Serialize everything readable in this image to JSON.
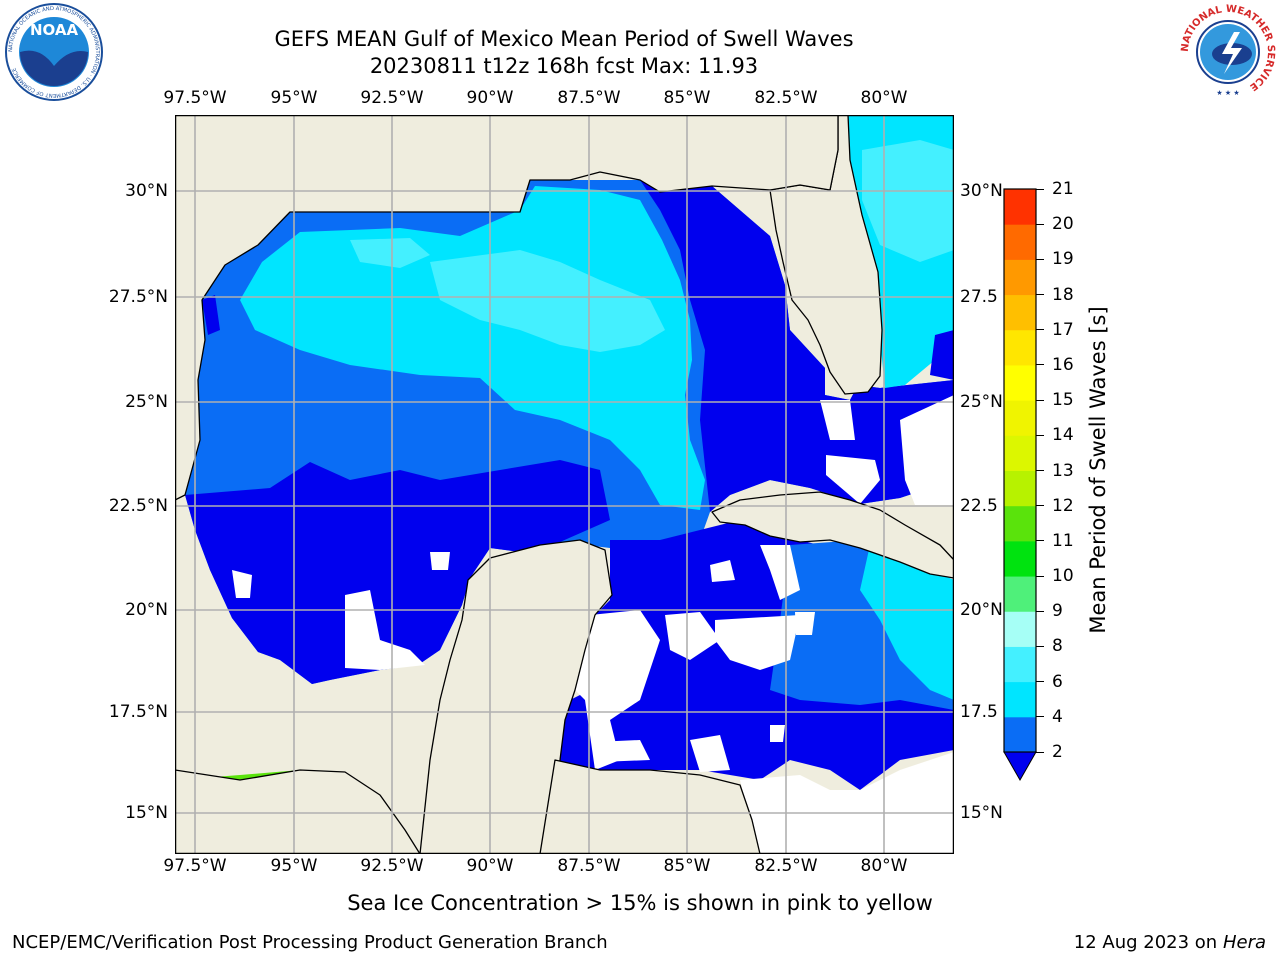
{
  "title": {
    "line1": "GEFS MEAN Gulf of Mexico Mean Period of Swell Waves",
    "line2": "20230811 t12z 168h fcst   Max: 11.93"
  },
  "map": {
    "lon_ticks": [
      "97.5°W",
      "95°W",
      "92.5°W",
      "90°W",
      "87.5°W",
      "85°W",
      "82.5°W",
      "80°W"
    ],
    "lat_ticks_left": [
      "30°N",
      "27.5°N",
      "25°N",
      "22.5°N",
      "20°N",
      "17.5°N",
      "15°N"
    ],
    "lat_ticks_right": [
      "30°N",
      "27.5",
      "25°N",
      "22.5",
      "20°N",
      "17.5",
      "15°N"
    ],
    "land_color": "#efedde",
    "grid_color": "#b0b0b0"
  },
  "colorbar": {
    "label": "Mean Period of Swell Waves [s]",
    "ticks": [
      "2",
      "4",
      "6",
      "8",
      "9",
      "10",
      "11",
      "12",
      "13",
      "14",
      "15",
      "16",
      "17",
      "18",
      "19",
      "20",
      "21"
    ],
    "colors": [
      "#0a6df5",
      "#00e5ff",
      "#44f0ff",
      "#a6fff6",
      "#4ff07a",
      "#00e30f",
      "#5ae30c",
      "#b7f200",
      "#dcf700",
      "#f0f400",
      "#ffff00",
      "#ffe600",
      "#ffbf00",
      "#ff9900",
      "#ff6a00",
      "#ff3200"
    ],
    "under_color": "#0000ee"
  },
  "footer": {
    "note": "Sea Ice Concentration > 15% is shown in pink to yellow",
    "credit": "NCEP/EMC/Verification Post Processing Product Generation Branch",
    "date": "12 Aug 2023 on",
    "machine": "Hera"
  },
  "logos": {
    "noaa_text": "NOAA",
    "noaa_ring": "NATIONAL OCEANIC AND ATMOSPHERIC ADMINISTRATION · U.S. DEPARTMENT OF COMMERCE",
    "nws_ring": "NATIONAL WEATHER SERVICE"
  }
}
